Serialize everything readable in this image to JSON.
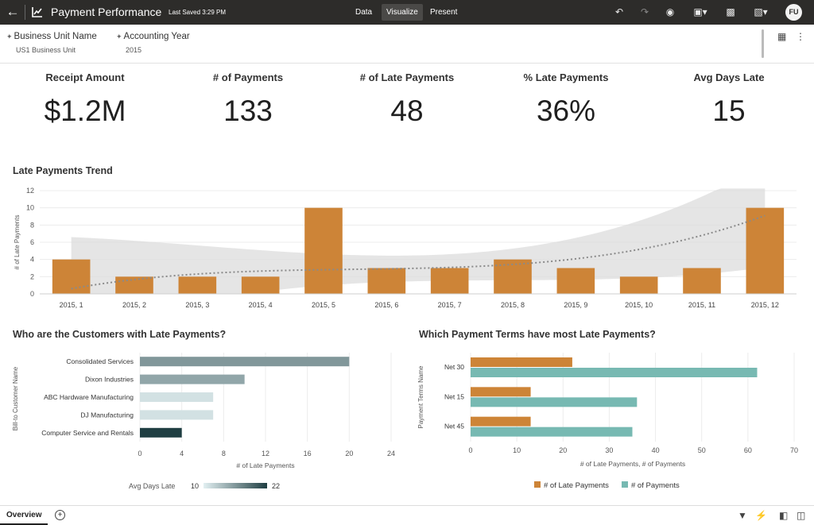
{
  "app": {
    "title": "Payment Performance",
    "saved": "Last Saved 3:29 PM",
    "tabs": [
      "Data",
      "Visualize",
      "Present"
    ],
    "active_tab": "Visualize",
    "user_initials": "FU"
  },
  "filters": [
    {
      "name": "Business Unit Name",
      "value": "US1 Business Unit"
    },
    {
      "name": "Accounting Year",
      "value": "2015"
    }
  ],
  "kpis": [
    {
      "label": "Receipt Amount",
      "value": "$1.2M"
    },
    {
      "label": "# of Payments",
      "value": "133"
    },
    {
      "label": "# of Late Payments",
      "value": "48"
    },
    {
      "label": "% Late Payments",
      "value": "36%"
    },
    {
      "label": "Avg Days Late",
      "value": "15"
    }
  ],
  "colors": {
    "bar_orange": "#cd8437",
    "teal": "#77b9b2",
    "topbar": "#2d2c2a"
  },
  "chart_data": [
    {
      "type": "bar",
      "title": "Late Payments Trend",
      "xlabel": "",
      "ylabel": "# of Late Payments",
      "categories": [
        "2015, 1",
        "2015, 2",
        "2015, 3",
        "2015, 4",
        "2015, 5",
        "2015, 6",
        "2015, 7",
        "2015, 8",
        "2015, 9",
        "2015, 10",
        "2015, 11",
        "2015, 12"
      ],
      "values": [
        4,
        2,
        2,
        2,
        10,
        3,
        3,
        4,
        3,
        2,
        3,
        10
      ],
      "ylim": [
        0,
        12
      ],
      "yticks": [
        0,
        2,
        4,
        6,
        8,
        10,
        12
      ],
      "trend": "polynomial trend line with confidence band"
    },
    {
      "type": "bar",
      "orientation": "horizontal",
      "title": "Who are the Customers with Late Payments?",
      "xlabel": "# of Late Payments",
      "ylabel": "Bill-to Customer Name",
      "categories": [
        "Consolidated Services",
        "Dixon Industries",
        "ABC Hardware Manufacturing",
        "DJ Manufacturing",
        "Computer Service and Rentals"
      ],
      "values": [
        20,
        10,
        7,
        7,
        4
      ],
      "color_values": [
        16,
        15,
        11,
        11,
        22
      ],
      "xlim": [
        0,
        24
      ],
      "xticks": [
        0,
        4,
        8,
        12,
        16,
        20,
        24
      ],
      "color_legend": {
        "label": "Avg Days Late",
        "min": "10",
        "max": "22"
      }
    },
    {
      "type": "bar",
      "orientation": "horizontal",
      "title": "Which Payment Terms have most Late Payments?",
      "xlabel": "# of Late Payments, # of Payments",
      "ylabel": "Payment Terms Name",
      "categories": [
        "Net 30",
        "Net 15",
        "Net 45"
      ],
      "series": [
        {
          "name": "# of Late Payments",
          "values": [
            22,
            13,
            13
          ]
        },
        {
          "name": "# of Payments",
          "values": [
            62,
            36,
            35
          ]
        }
      ],
      "xlim": [
        0,
        70
      ],
      "xticks": [
        0,
        10,
        20,
        30,
        40,
        50,
        60,
        70
      ]
    }
  ],
  "bottom": {
    "tab": "Overview"
  }
}
